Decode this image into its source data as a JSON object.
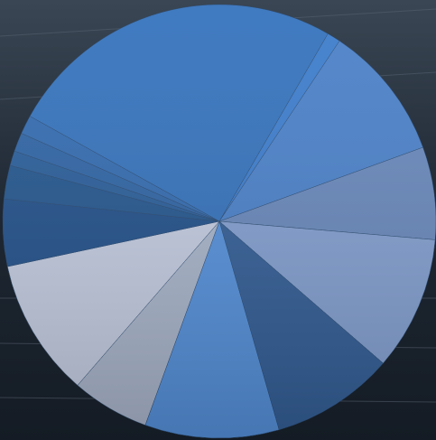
{
  "chart_data": {
    "type": "pie",
    "values": [
      25.3,
      1.0,
      10.1,
      6.9,
      10.0,
      9.2,
      10.0,
      5.8,
      10.3,
      5.0,
      2.5,
      1.1,
      1.4,
      1.4
    ],
    "colors": [
      "#3472bc",
      "#3c7ccc",
      "#4a80c8",
      "#6887ba",
      "#829fd0",
      "#335e96",
      "#5590da",
      "#a8b4ca",
      "#c2cbe0",
      "#22508a",
      "#24568e",
      "#2a5e9a",
      "#2f64a4",
      "#336bb0"
    ]
  }
}
